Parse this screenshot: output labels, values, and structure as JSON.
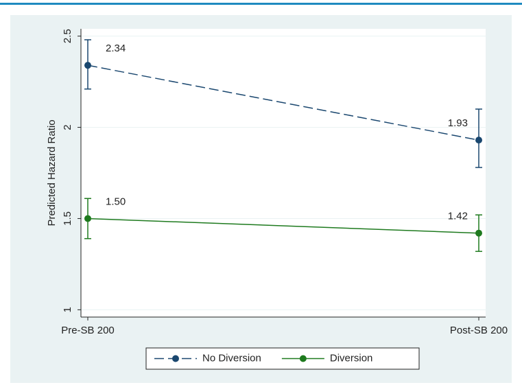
{
  "chart_data": {
    "type": "line",
    "y_label": "Predicted Hazard Ratio",
    "categories": [
      "Pre-SB 200",
      "Post-SB 200"
    ],
    "series": [
      {
        "name": "No Diversion",
        "color": "#1a476f",
        "line_style": "dashed",
        "values": [
          2.34,
          1.93
        ],
        "value_labels": [
          "2.34",
          "1.93"
        ],
        "lower": [
          2.21,
          1.78
        ],
        "upper": [
          2.48,
          2.1
        ]
      },
      {
        "name": "Diversion",
        "color": "#1e7a1e",
        "line_style": "solid",
        "values": [
          1.5,
          1.42
        ],
        "value_labels": [
          "1.50",
          "1.42"
        ],
        "lower": [
          1.39,
          1.32
        ],
        "upper": [
          1.61,
          1.52
        ]
      }
    ],
    "ylim": [
      0.96,
      2.54
    ],
    "yticks": [
      1,
      1.5,
      2,
      2.5
    ],
    "grid": true,
    "legend": "bottom"
  }
}
